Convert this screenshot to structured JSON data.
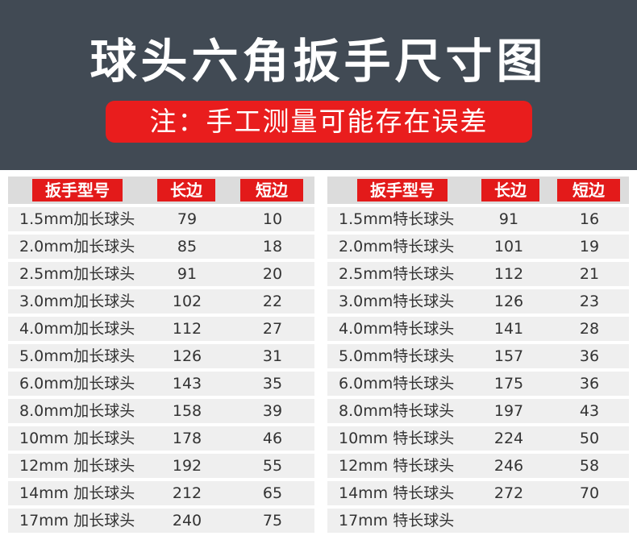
{
  "header": {
    "title": "球头六角扳手尺寸图",
    "note": "注：手工测量可能存在误差"
  },
  "tables": [
    {
      "columns": [
        "扳手型号",
        "长边",
        "短边"
      ],
      "rows": [
        [
          "1.5mm加长球头",
          "79",
          "10"
        ],
        [
          "2.0mm加长球头",
          "85",
          "18"
        ],
        [
          "2.5mm加长球头",
          "91",
          "20"
        ],
        [
          "3.0mm加长球头",
          "102",
          "22"
        ],
        [
          "4.0mm加长球头",
          "112",
          "27"
        ],
        [
          "5.0mm加长球头",
          "126",
          "31"
        ],
        [
          "6.0mm加长球头",
          "143",
          "35"
        ],
        [
          "8.0mm加长球头",
          "158",
          "39"
        ],
        [
          "10mm 加长球头",
          "178",
          "46"
        ],
        [
          "12mm 加长球头",
          "192",
          "55"
        ],
        [
          "14mm 加长球头",
          "212",
          "65"
        ],
        [
          "17mm 加长球头",
          "240",
          "75"
        ]
      ]
    },
    {
      "columns": [
        "扳手型号",
        "长边",
        "短边"
      ],
      "rows": [
        [
          "1.5mm特长球头",
          "91",
          "16"
        ],
        [
          "2.0mm特长球头",
          "101",
          "19"
        ],
        [
          "2.5mm特长球头",
          "112",
          "21"
        ],
        [
          "3.0mm特长球头",
          "126",
          "23"
        ],
        [
          "4.0mm特长球头",
          "141",
          "28"
        ],
        [
          "5.0mm特长球头",
          "157",
          "36"
        ],
        [
          "6.0mm特长球头",
          "175",
          "36"
        ],
        [
          "8.0mm特长球头",
          "197",
          "43"
        ],
        [
          "10mm 特长球头",
          "224",
          "50"
        ],
        [
          "12mm 特长球头",
          "246",
          "58"
        ],
        [
          "14mm 特长球头",
          "272",
          "70"
        ],
        [
          "17mm 特长球头",
          "",
          ""
        ]
      ]
    }
  ]
}
